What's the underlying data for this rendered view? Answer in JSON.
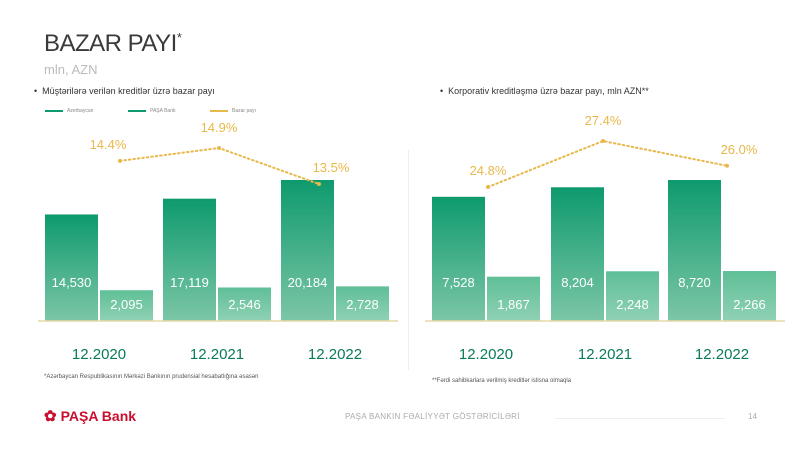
{
  "title": "BAZAR PAYI",
  "title_mark": "*",
  "unit": "mln, AZN",
  "colors": {
    "azerbaycan": "#0e9a6e",
    "pasa": "#5fbf97",
    "share": "#e8b84a",
    "axis": "#e8d9a8"
  },
  "chart_data": [
    {
      "type": "bar",
      "title": "Müştərilərə verilən kreditlər üzrə bazar payı",
      "legend": [
        "Azerbaycan",
        "PAŞA Bank",
        "Bazar payı"
      ],
      "categories": [
        "12.2020",
        "12.2021",
        "12.2022"
      ],
      "series": [
        {
          "name": "Azerbaycan",
          "values": [
            14530,
            17119,
            20184
          ],
          "labels": [
            "14,530",
            "17,119",
            "20,184"
          ]
        },
        {
          "name": "PAŞA Bank",
          "values": [
            2095,
            2546,
            2728
          ],
          "labels": [
            "2,095",
            "2,546",
            "2,728"
          ]
        },
        {
          "name": "Bazar payı",
          "type": "line",
          "values": [
            14.4,
            14.9,
            13.5
          ],
          "labels": [
            "14.4%",
            "14.9%",
            "13.5%"
          ]
        }
      ],
      "footnote": "*Azərbaycan Respublikasının Mərkəzi Bankının prudensial hesabatlığına əsasən"
    },
    {
      "type": "bar",
      "title": "Korporativ kreditləşmə üzrə bazar payı, mln AZN**",
      "categories": [
        "12.2020",
        "12.2021",
        "12.2022"
      ],
      "series": [
        {
          "name": "Azerbaycan",
          "values": [
            7528,
            8204,
            8720
          ],
          "labels": [
            "7,528",
            "8,204",
            "8,720"
          ]
        },
        {
          "name": "PAŞA Bank",
          "values": [
            1867,
            2248,
            2266
          ],
          "labels": [
            "1,867",
            "2,248",
            "2,266"
          ]
        },
        {
          "name": "Bazar payı",
          "type": "line",
          "values": [
            24.8,
            27.4,
            26.0
          ],
          "labels": [
            "24.8%",
            "27.4%",
            "26.0%"
          ]
        }
      ],
      "footnote": "**Fərdi sahibkarlara verilmiş kreditlər istisna olmaqla"
    }
  ],
  "footer": {
    "brand": "PAŞA Bank",
    "text": "PAŞA BANKIN FƏALİYYƏT GÖSTƏRİCİLƏRİ",
    "page": "14"
  }
}
